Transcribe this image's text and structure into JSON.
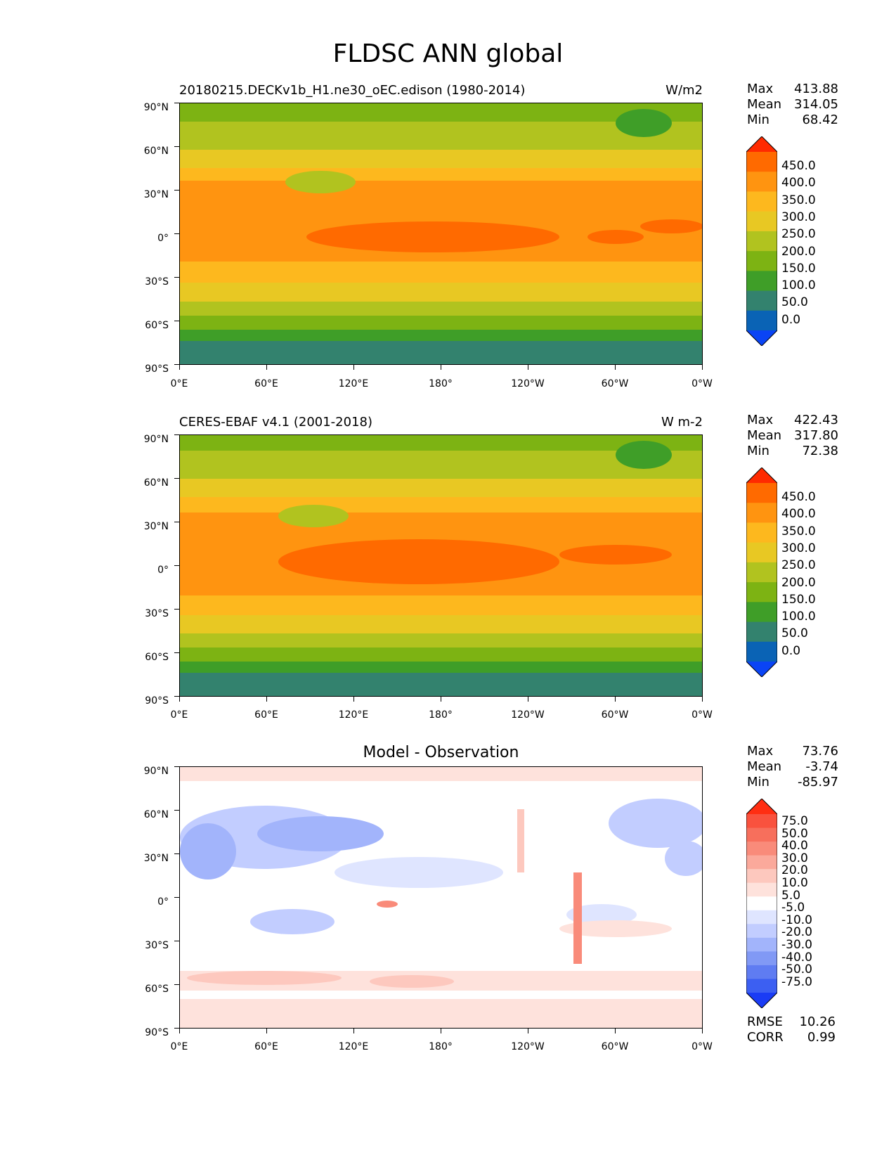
{
  "figure_title": "FLDSC ANN global",
  "axes": {
    "y_ticks": [
      "90°N",
      "60°N",
      "30°N",
      "0°",
      "30°S",
      "60°S",
      "90°S"
    ],
    "x_ticks": [
      "0°E",
      "60°E",
      "120°E",
      "180°",
      "120°W",
      "60°W",
      "0°W"
    ]
  },
  "panels": [
    {
      "title_left": "20180215.DECKv1b_H1.ne30_oEC.edison (1980-2014)",
      "title_right": "W/m2",
      "stats": [
        {
          "label": "Max",
          "value": "413.88"
        },
        {
          "label": "Mean",
          "value": "314.05"
        },
        {
          "label": "Min",
          "value": "68.42"
        }
      ]
    },
    {
      "title_left": "CERES-EBAF v4.1 (2001-2018)",
      "title_right": "W m-2",
      "stats": [
        {
          "label": "Max",
          "value": "422.43"
        },
        {
          "label": "Mean",
          "value": "317.80"
        },
        {
          "label": "Min",
          "value": "72.38"
        }
      ]
    },
    {
      "title_center": "Model - Observation",
      "stats": [
        {
          "label": "Max",
          "value": "73.76"
        },
        {
          "label": "Mean",
          "value": "-3.74"
        },
        {
          "label": "Min",
          "value": "-85.97"
        }
      ],
      "metrics": [
        {
          "label": "RMSE",
          "value": "10.26"
        },
        {
          "label": "CORR",
          "value": "0.99"
        }
      ]
    }
  ],
  "colorbars": {
    "main": {
      "labels": [
        "450.0",
        "400.0",
        "350.0",
        "300.0",
        "250.0",
        "200.0",
        "150.0",
        "100.0",
        "50.0",
        "0.0"
      ],
      "colors": [
        "#ff2a00",
        "#ff6a00",
        "#ff9410",
        "#fdb81e",
        "#e8c823",
        "#b1c31f",
        "#7db313",
        "#3f9e28",
        "#33826e",
        "#0a63b5",
        "#0a44f5"
      ]
    },
    "diff": {
      "labels": [
        "75.0",
        "50.0",
        "40.0",
        "30.0",
        "20.0",
        "10.0",
        "5.0",
        "-5.0",
        "-10.0",
        "-20.0",
        "-30.0",
        "-40.0",
        "-50.0",
        "-75.0"
      ],
      "colors": [
        "#ff2e12",
        "#f9523e",
        "#f76f5c",
        "#f98b7a",
        "#fba99b",
        "#fdc8be",
        "#fee2dc",
        "#ffffff",
        "#dfe5ff",
        "#c2cdff",
        "#a2b4fb",
        "#8199f5",
        "#5f7cf2",
        "#3c5ff2",
        "#1a3cf5"
      ]
    }
  }
}
